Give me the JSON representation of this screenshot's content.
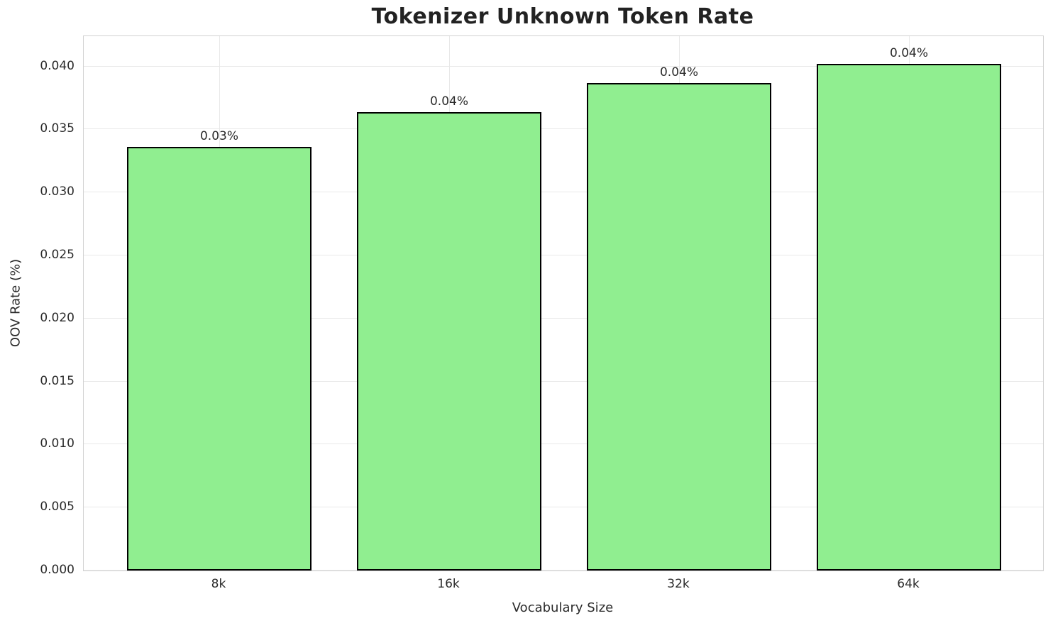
{
  "chart_data": {
    "type": "bar",
    "title": "Tokenizer Unknown Token Rate",
    "xlabel": "Vocabulary Size",
    "ylabel": "OOV Rate (%)",
    "categories": [
      "8k",
      "16k",
      "32k",
      "64k"
    ],
    "values": [
      0.0336,
      0.0364,
      0.0387,
      0.0402
    ],
    "bar_labels": [
      "0.03%",
      "0.04%",
      "0.04%",
      "0.04%"
    ],
    "ylim": [
      0,
      0.0424
    ],
    "yticks": [
      0.0,
      0.005,
      0.01,
      0.015,
      0.02,
      0.025,
      0.03,
      0.035,
      0.04
    ],
    "ytick_labels": [
      "0.000",
      "0.005",
      "0.010",
      "0.015",
      "0.020",
      "0.025",
      "0.030",
      "0.035",
      "0.040"
    ],
    "grid": true,
    "legend": "none",
    "colors": {
      "bar_fill": "#90EE90",
      "bar_edge": "#000000",
      "grid": "#e8e8e8",
      "spine": "#d2d2d2",
      "text": "#2b2b2b",
      "title": "#222222",
      "background": "#ffffff"
    }
  }
}
